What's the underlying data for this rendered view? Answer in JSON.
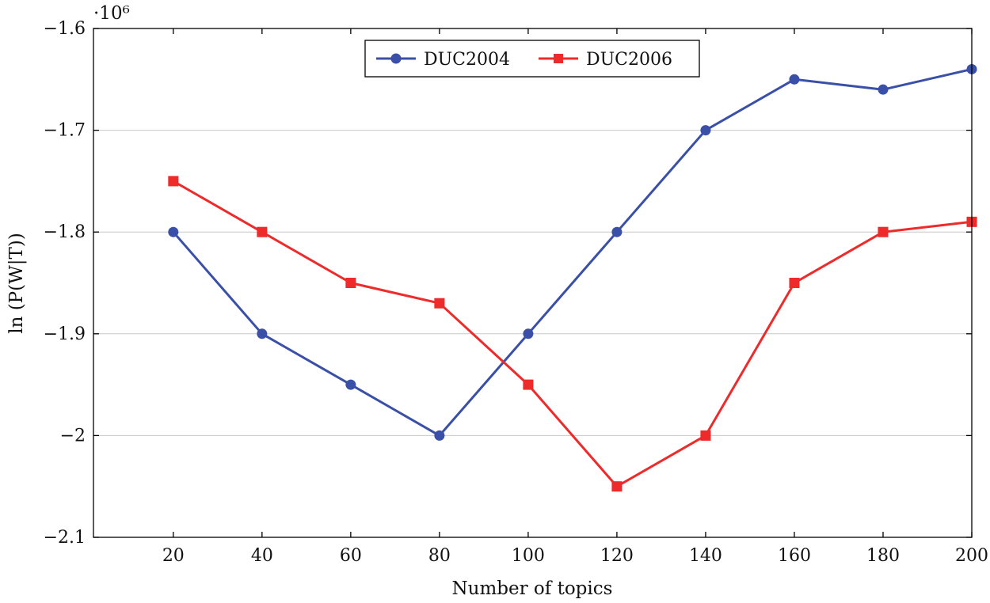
{
  "chart_data": {
    "type": "line",
    "title": "",
    "xlabel": "Number of topics",
    "ylabel": "ln (P(W|T))",
    "y_scale_label": "·10⁶",
    "x_ticks": [
      20,
      40,
      60,
      80,
      100,
      120,
      140,
      160,
      180,
      200
    ],
    "x_tick_labels": [
      "20",
      "40",
      "60",
      "80",
      "100",
      "120",
      "140",
      "160",
      "180",
      "200"
    ],
    "xlim": [
      2,
      200
    ],
    "y_ticks": [
      -1.6,
      -1.7,
      -1.8,
      -1.9,
      -2.0,
      -2.1
    ],
    "y_tick_labels": [
      "−1.6",
      "−1.7",
      "−1.8",
      "−1.9",
      "−2",
      "−2.1"
    ],
    "ylim": [
      -2.1,
      -1.6
    ],
    "grid": "horizontal",
    "legend_position": "top-center",
    "x": [
      20,
      40,
      60,
      80,
      100,
      120,
      140,
      160,
      180,
      200
    ],
    "series": [
      {
        "name": "DUC2004",
        "color": "#3a4fa8",
        "marker": "circle",
        "values": [
          -1.8,
          -1.9,
          -1.95,
          -2.0,
          -1.9,
          -1.8,
          -1.7,
          -1.65,
          -1.66,
          -1.64
        ]
      },
      {
        "name": "DUC2006",
        "color": "#ee2a2a",
        "marker": "square",
        "values": [
          -1.75,
          -1.8,
          -1.85,
          -1.87,
          -1.95,
          -2.05,
          -2.0,
          -1.85,
          -1.8,
          -1.79
        ]
      }
    ]
  }
}
